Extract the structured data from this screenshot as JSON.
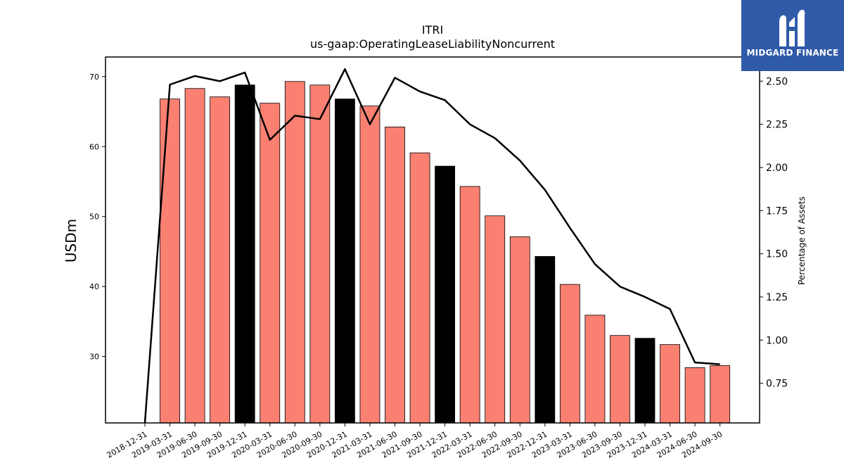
{
  "chart_data": {
    "type": "bar",
    "title": "ITRI",
    "subtitle": "us-gaap:OperatingLeaseLiabilityNoncurrent",
    "ylabel": "USDm",
    "y2label": "Percentage of Assets",
    "categories": [
      "2018-12-31",
      "2019-03-31",
      "2019-06-30",
      "2019-09-30",
      "2019-12-31",
      "2020-03-31",
      "2020-06-30",
      "2020-09-30",
      "2020-12-31",
      "2021-03-31",
      "2021-06-30",
      "2021-09-30",
      "2021-12-31",
      "2022-03-31",
      "2022-06-30",
      "2022-09-30",
      "2022-12-31",
      "2023-03-31",
      "2023-06-30",
      "2023-09-30",
      "2023-12-31",
      "2024-03-31",
      "2024-06-30",
      "2024-09-30"
    ],
    "series": [
      {
        "axis": "left",
        "kind": "bar",
        "values": [
          null,
          66.8,
          68.3,
          67.1,
          68.8,
          66.2,
          69.3,
          68.8,
          66.8,
          65.8,
          62.8,
          59.1,
          57.2,
          54.3,
          50.1,
          47.1,
          44.3,
          40.3,
          35.9,
          33.0,
          32.6,
          31.7,
          28.4,
          28.7
        ],
        "colors": [
          "#fa8072",
          "#fa8072",
          "#fa8072",
          "#fa8072",
          "#000000",
          "#fa8072",
          "#fa8072",
          "#fa8072",
          "#000000",
          "#fa8072",
          "#fa8072",
          "#fa8072",
          "#000000",
          "#fa8072",
          "#fa8072",
          "#fa8072",
          "#000000",
          "#fa8072",
          "#fa8072",
          "#fa8072",
          "#000000",
          "#fa8072",
          "#fa8072",
          "#fa8072"
        ]
      },
      {
        "axis": "right",
        "kind": "line",
        "color": "#000000",
        "values": [
          0.52,
          2.48,
          2.53,
          2.5,
          2.55,
          2.16,
          2.3,
          2.28,
          2.57,
          2.25,
          2.52,
          2.44,
          2.39,
          2.25,
          2.17,
          2.04,
          1.87,
          1.65,
          1.44,
          1.31,
          1.25,
          1.18,
          0.87,
          0.86
        ]
      }
    ],
    "ylim": [
      20.5,
      72.8
    ],
    "yticks": [
      30,
      40,
      50,
      60,
      70
    ],
    "y2lim": [
      0.52,
      2.64
    ],
    "y2ticks": [
      "0.75",
      "1.00",
      "1.25",
      "1.50",
      "1.75",
      "2.00",
      "2.25",
      "2.50"
    ],
    "grid": false,
    "legend": "none"
  },
  "logo": {
    "text": "MIDGARD FINANCE",
    "color": "#2f5aa8"
  }
}
